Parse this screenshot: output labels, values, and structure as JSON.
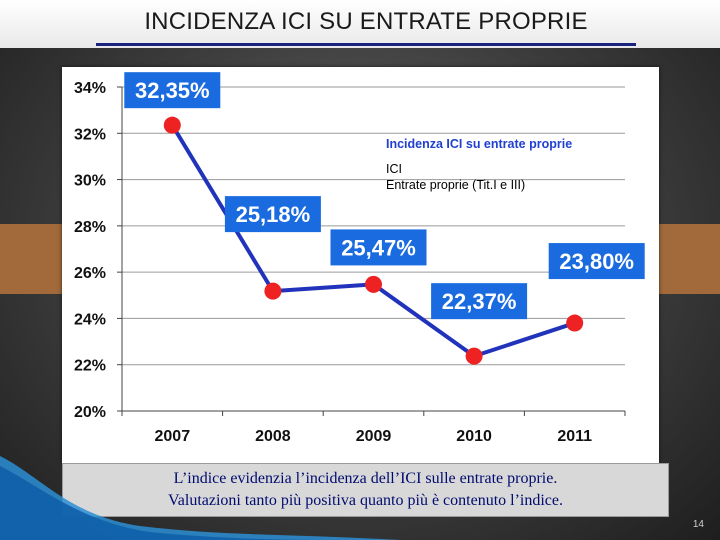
{
  "slide": {
    "title": "INCIDENZA ICI SU ENTRATE PROPRIE",
    "caption_line1": "L’indice evidenzia l’incidenza dell’ICI sulle entrate proprie.",
    "caption_line2": "Valutazioni tanto più positiva quanto più è contenuto l’indice.",
    "page_number": "14"
  },
  "colors": {
    "line": "#2233bb",
    "point": "#ee2222",
    "label_box": "#1a6be0",
    "legend_title": "#2040d0"
  },
  "chart_data": {
    "type": "line",
    "title": "",
    "categories": [
      "2007",
      "2008",
      "2009",
      "2010",
      "2011"
    ],
    "series": [
      {
        "name": "Incidenza ICI su entrate proprie",
        "values": [
          32.35,
          25.18,
          25.47,
          22.37,
          23.8
        ],
        "data_labels": [
          "32,35%",
          "25,18%",
          "25,47%",
          "22,37%",
          "23,80%"
        ]
      }
    ],
    "ylim": [
      20,
      34
    ],
    "yticks": [
      34,
      32,
      30,
      28,
      26,
      24,
      22,
      20
    ],
    "ytick_labels": [
      "34%",
      "32%",
      "30%",
      "28%",
      "26%",
      "24%",
      "22%",
      "20%"
    ],
    "grid": true,
    "legend": {
      "title": "Incidenza ICI su entrate proprie",
      "lines": [
        "ICI",
        "Entrate proprie (Tit.I e III)"
      ]
    }
  }
}
